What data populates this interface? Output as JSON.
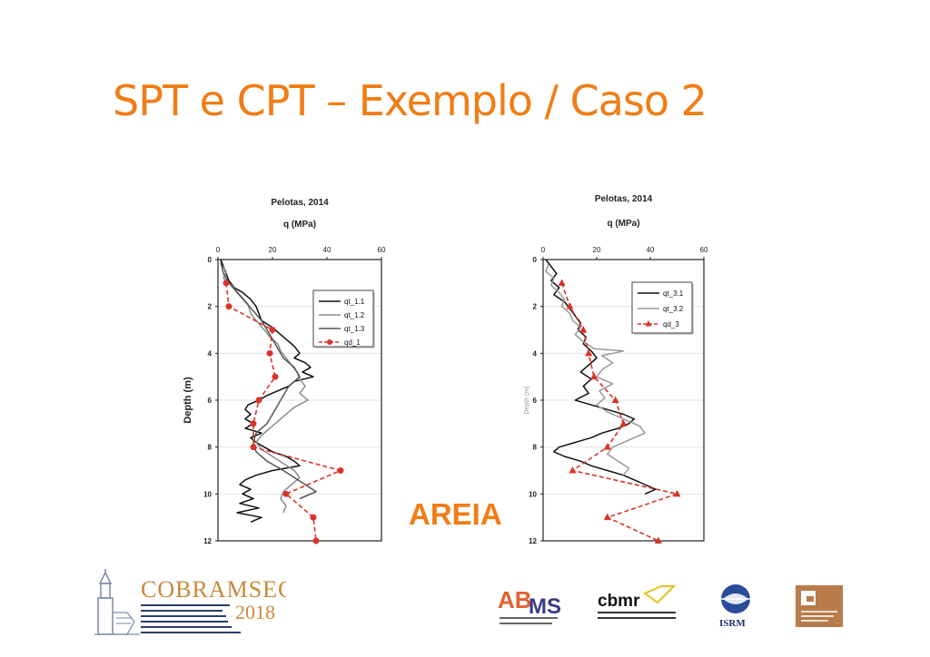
{
  "slide": {
    "title": "SPT e CPT – Exemplo / Caso 2",
    "title_color": "#f07d16",
    "annotation": "AREIA",
    "annotation_color": "#f07d16"
  },
  "chart_data": [
    {
      "type": "line",
      "title": "Pelotas, 2014",
      "xlabel": "q (MPa)",
      "ylabel": "Depth (m)",
      "x_axis_position": "top",
      "y_inverted": true,
      "xlim": [
        0,
        60
      ],
      "ylim": [
        0,
        12
      ],
      "xticks": [
        "0",
        "20",
        "40",
        "60"
      ],
      "yticks": [
        "0",
        "2",
        "4",
        "6",
        "8",
        "10",
        "12"
      ],
      "grid": "horizontal",
      "legend_position": "top-right",
      "series": [
        {
          "name": "qt_1.1",
          "color": "#111111",
          "style": "solid",
          "marker": "none",
          "points": [
            [
              1,
              0
            ],
            [
              2,
              0.3
            ],
            [
              3,
              0.6
            ],
            [
              4,
              0.9
            ],
            [
              6,
              1.2
            ],
            [
              9,
              1.4
            ],
            [
              12,
              1.7
            ],
            [
              14,
              2
            ],
            [
              15,
              2.3
            ],
            [
              16,
              2.6
            ],
            [
              20,
              2.9
            ],
            [
              23,
              3.2
            ],
            [
              25,
              3.4
            ],
            [
              28,
              3.7
            ],
            [
              30,
              4
            ],
            [
              28,
              4.2
            ],
            [
              32,
              4.4
            ],
            [
              34,
              4.6
            ],
            [
              31,
              4.8
            ],
            [
              35,
              5
            ],
            [
              28,
              5.2
            ],
            [
              26,
              5.4
            ],
            [
              22,
              5.6
            ],
            [
              18,
              5.8
            ],
            [
              15,
              6
            ],
            [
              11,
              6.2
            ],
            [
              10,
              6.4
            ],
            [
              12,
              6.6
            ],
            [
              10,
              6.8
            ],
            [
              13,
              7
            ],
            [
              10,
              7.2
            ],
            [
              16,
              7.4
            ],
            [
              12,
              7.6
            ],
            [
              14,
              7.8
            ],
            [
              17,
              8
            ],
            [
              20,
              8.2
            ],
            [
              25,
              8.4
            ],
            [
              28,
              8.6
            ],
            [
              30,
              8.8
            ],
            [
              20,
              9
            ],
            [
              14,
              9.2
            ],
            [
              10,
              9.4
            ],
            [
              8,
              9.6
            ],
            [
              12,
              9.8
            ],
            [
              9,
              10
            ],
            [
              13,
              10.2
            ],
            [
              8,
              10.4
            ],
            [
              15,
              10.6
            ],
            [
              7,
              10.8
            ],
            [
              16,
              11
            ],
            [
              12,
              11.2
            ]
          ]
        },
        {
          "name": "qt_1.2",
          "color": "#8c8c8c",
          "style": "solid",
          "marker": "none",
          "points": [
            [
              1,
              0.2
            ],
            [
              3,
              0.5
            ],
            [
              2,
              0.8
            ],
            [
              5,
              1.1
            ],
            [
              8,
              1.5
            ],
            [
              11,
              1.9
            ],
            [
              12,
              2.3
            ],
            [
              14,
              2.6
            ],
            [
              17,
              3
            ],
            [
              19,
              3.3
            ],
            [
              22,
              3.6
            ],
            [
              23,
              3.9
            ],
            [
              25,
              4.2
            ],
            [
              27,
              4.5
            ],
            [
              29,
              4.8
            ],
            [
              30,
              5.1
            ],
            [
              32,
              5.4
            ],
            [
              30,
              5.7
            ],
            [
              33,
              6
            ],
            [
              28,
              6.3
            ],
            [
              25,
              6.6
            ],
            [
              22,
              6.9
            ],
            [
              19,
              7.2
            ],
            [
              16,
              7.5
            ],
            [
              14,
              7.8
            ],
            [
              16,
              8.1
            ],
            [
              20,
              8.4
            ],
            [
              24,
              8.7
            ],
            [
              28,
              9
            ],
            [
              30,
              9.3
            ],
            [
              27,
              9.6
            ],
            [
              24,
              9.9
            ],
            [
              23,
              10.2
            ],
            [
              25,
              10.5
            ],
            [
              24,
              10.8
            ]
          ]
        },
        {
          "name": "qt_1.3",
          "color": "#555555",
          "style": "solid",
          "marker": "none",
          "points": [
            [
              1,
              0.1
            ],
            [
              2,
              0.6
            ],
            [
              4,
              1
            ],
            [
              7,
              1.4
            ],
            [
              10,
              1.8
            ],
            [
              13,
              2.2
            ],
            [
              16,
              2.6
            ],
            [
              18,
              3
            ],
            [
              20,
              3.4
            ],
            [
              22,
              3.8
            ],
            [
              24,
              4.2
            ],
            [
              28,
              4.6
            ],
            [
              30,
              5
            ],
            [
              26,
              5.4
            ],
            [
              24,
              5.8
            ],
            [
              22,
              6.2
            ],
            [
              20,
              6.6
            ],
            [
              18,
              7
            ],
            [
              14,
              7.4
            ],
            [
              13,
              7.8
            ],
            [
              14,
              8.2
            ],
            [
              18,
              8.6
            ],
            [
              24,
              9
            ],
            [
              28,
              9.3
            ],
            [
              32,
              9.6
            ],
            [
              36,
              9.9
            ],
            [
              30,
              10.2
            ]
          ]
        },
        {
          "name": "qd_1",
          "color": "#d9342b",
          "style": "dashed",
          "marker": "circle",
          "points": [
            [
              3,
              1
            ],
            [
              4,
              2
            ],
            [
              20,
              3
            ],
            [
              19,
              4
            ],
            [
              21,
              5
            ],
            [
              15,
              6
            ],
            [
              13,
              7
            ],
            [
              13,
              8
            ],
            [
              45,
              9
            ],
            [
              25,
              10
            ],
            [
              35,
              11
            ],
            [
              36,
              12
            ]
          ]
        }
      ]
    },
    {
      "type": "line",
      "title": "Pelotas, 2014",
      "xlabel": "q (MPa)",
      "ylabel": "Depth (m)",
      "x_axis_position": "top",
      "y_inverted": true,
      "xlim": [
        0,
        60
      ],
      "ylim": [
        0,
        12
      ],
      "xticks": [
        "0",
        "20",
        "40",
        "60"
      ],
      "yticks": [
        "0",
        "2",
        "4",
        "6",
        "8",
        "10",
        "12"
      ],
      "grid": "horizontal",
      "legend_position": "top-right",
      "series": [
        {
          "name": "qt_3.1",
          "color": "#111111",
          "style": "solid",
          "marker": "none",
          "points": [
            [
              1,
              0
            ],
            [
              3,
              0.3
            ],
            [
              5,
              0.6
            ],
            [
              3,
              0.9
            ],
            [
              6,
              1.2
            ],
            [
              4,
              1.5
            ],
            [
              8,
              1.8
            ],
            [
              10,
              2.1
            ],
            [
              12,
              2.4
            ],
            [
              14,
              2.7
            ],
            [
              13,
              3
            ],
            [
              16,
              3.3
            ],
            [
              15,
              3.6
            ],
            [
              18,
              3.9
            ],
            [
              20,
              4.2
            ],
            [
              17,
              4.5
            ],
            [
              14,
              4.8
            ],
            [
              18,
              5.1
            ],
            [
              15,
              5.4
            ],
            [
              17,
              5.7
            ],
            [
              12,
              6
            ],
            [
              18,
              6.2
            ],
            [
              24,
              6.4
            ],
            [
              30,
              6.6
            ],
            [
              34,
              6.8
            ],
            [
              32,
              7
            ],
            [
              28,
              7.2
            ],
            [
              22,
              7.4
            ],
            [
              18,
              7.6
            ],
            [
              12,
              7.8
            ],
            [
              6,
              8
            ],
            [
              4,
              8.2
            ],
            [
              8,
              8.4
            ],
            [
              14,
              8.6
            ],
            [
              18,
              8.8
            ],
            [
              24,
              9
            ],
            [
              30,
              9.2
            ],
            [
              34,
              9.4
            ],
            [
              38,
              9.6
            ],
            [
              42,
              9.8
            ],
            [
              38,
              10
            ]
          ]
        },
        {
          "name": "qt_3.2",
          "color": "#999999",
          "style": "solid",
          "marker": "none",
          "points": [
            [
              2,
              0.2
            ],
            [
              1,
              0.5
            ],
            [
              4,
              0.8
            ],
            [
              3,
              1.1
            ],
            [
              6,
              1.4
            ],
            [
              8,
              1.7
            ],
            [
              7,
              2
            ],
            [
              10,
              2.3
            ],
            [
              11,
              2.6
            ],
            [
              14,
              2.9
            ],
            [
              12,
              3.2
            ],
            [
              15,
              3.5
            ],
            [
              19,
              3.8
            ],
            [
              30,
              3.9
            ],
            [
              22,
              4.1
            ],
            [
              26,
              4.4
            ],
            [
              22,
              4.7
            ],
            [
              20,
              5
            ],
            [
              26,
              5.3
            ],
            [
              21,
              5.6
            ],
            [
              23,
              5.9
            ],
            [
              20,
              6.2
            ],
            [
              24,
              6.5
            ],
            [
              30,
              6.8
            ],
            [
              36,
              7.1
            ],
            [
              38,
              7.4
            ],
            [
              32,
              7.7
            ],
            [
              26,
              8
            ],
            [
              24,
              8.3
            ],
            [
              28,
              8.6
            ],
            [
              32,
              8.9
            ],
            [
              30,
              9.2
            ]
          ]
        },
        {
          "name": "qd_3",
          "color": "#d9342b",
          "style": "dashed",
          "marker": "triangle",
          "points": [
            [
              7,
              1
            ],
            [
              10,
              2
            ],
            [
              15,
              3
            ],
            [
              17,
              4
            ],
            [
              19,
              5
            ],
            [
              27,
              6
            ],
            [
              30,
              7
            ],
            [
              24,
              8
            ],
            [
              11,
              9
            ],
            [
              50,
              10
            ],
            [
              24,
              11
            ],
            [
              43,
              12
            ]
          ]
        }
      ]
    }
  ]
}
